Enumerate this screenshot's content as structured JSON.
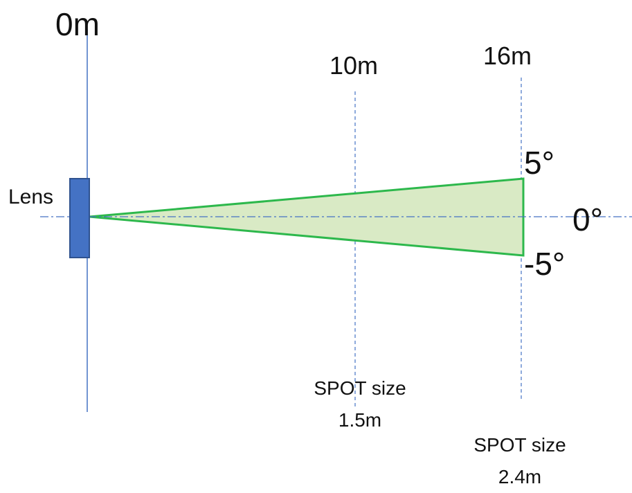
{
  "labels": {
    "origin": "0m",
    "mid_distance": "10m",
    "far_distance": "16m",
    "lens": "Lens",
    "angle_top": "5°",
    "angle_center": "0°",
    "angle_bottom": "-5°"
  },
  "spot_notes": {
    "mid": {
      "title": "SPOT size",
      "value": "1.5m"
    },
    "far": {
      "title": "SPOT size",
      "value": "2.4m"
    }
  },
  "colors": {
    "lens_fill": "#4472C4",
    "lens_stroke": "#2F528F",
    "beam_fill": "#D9EAC5",
    "beam_stroke": "#2DB84C",
    "guide_line": "#4472C4"
  }
}
